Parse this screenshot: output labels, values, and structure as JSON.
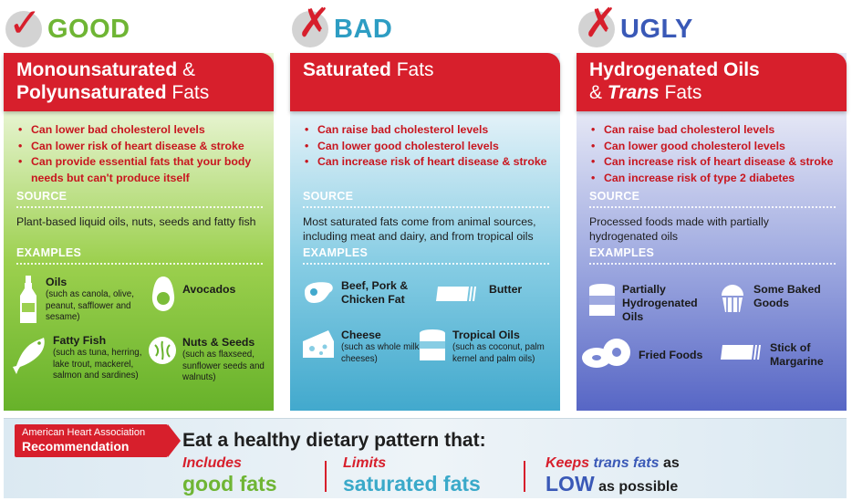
{
  "columns": {
    "good": {
      "verdict": "GOOD",
      "mark_icon": "checkmark-icon",
      "title_line1_bold": "Monounsaturated",
      "title_line1_rest": " &",
      "title_line2_bold": "Polyunsaturated",
      "title_line2_rest": " Fats",
      "bullets": [
        "Can lower bad cholesterol levels",
        "Can lower risk of heart disease & stroke",
        "Can provide essential fats that your body needs but can't produce itself"
      ],
      "source_label": "SOURCE",
      "source_text": "Plant-based liquid oils, nuts, seeds and fatty fish",
      "examples_label": "EXAMPLES",
      "examples": [
        {
          "title": "Oils",
          "detail": "(such as canola, olive, peanut, safflower and sesame)",
          "icon": "oil-bottle-icon"
        },
        {
          "title": "Avocados",
          "detail": "",
          "icon": "avocado-icon"
        },
        {
          "title": "Fatty Fish",
          "detail": "(such as tuna, herring, lake trout, mackerel, salmon and sardines)",
          "icon": "fish-icon"
        },
        {
          "title": "Nuts & Seeds",
          "detail": "(such as flaxseed, sunflower seeds and walnuts)",
          "icon": "walnut-icon"
        }
      ]
    },
    "bad": {
      "verdict": "BAD",
      "mark_icon": "x-mark-icon",
      "title_bold": "Saturated",
      "title_rest": " Fats",
      "bullets": [
        "Can raise bad cholesterol levels",
        "Can lower good cholesterol levels",
        "Can increase risk of heart disease & stroke"
      ],
      "source_label": "SOURCE",
      "source_text": "Most saturated fats come from animal sources, including meat and dairy, and from tropical oils",
      "examples_label": "EXAMPLES",
      "examples": [
        {
          "title": "Beef, Pork & Chicken Fat",
          "detail": "",
          "icon": "steak-icon"
        },
        {
          "title": "Butter",
          "detail": "",
          "icon": "butter-icon"
        },
        {
          "title": "Cheese",
          "detail": "(such as whole milk cheeses)",
          "icon": "cheese-icon"
        },
        {
          "title": "Tropical Oils",
          "detail": "(such as coconut, palm kernel and palm oils)",
          "icon": "oil-can-icon"
        }
      ]
    },
    "ugly": {
      "verdict": "UGLY",
      "mark_icon": "x-mark-icon",
      "title_line1": "Hydrogenated Oils",
      "title_line2_amp": "& ",
      "title_line2_italic": "Trans",
      "title_line2_rest": " Fats",
      "bullets": [
        "Can raise bad cholesterol levels",
        "Can lower good cholesterol levels",
        "Can increase risk of heart disease & stroke",
        "Can increase risk of type 2 diabetes"
      ],
      "source_label": "SOURCE",
      "source_text": "Processed foods made with partially hydrogenated oils",
      "examples_label": "EXAMPLES",
      "examples": [
        {
          "title": "Partially Hydrogenated Oils",
          "detail": "",
          "icon": "shortening-can-icon"
        },
        {
          "title": "Some Baked Goods",
          "detail": "",
          "icon": "cupcake-icon"
        },
        {
          "title": "Fried Foods",
          "detail": "",
          "icon": "donut-icon"
        },
        {
          "title": "Stick of Margarine",
          "detail": "",
          "icon": "margarine-icon"
        }
      ]
    }
  },
  "recommendation": {
    "badge_line1": "American Heart Association",
    "badge_line2": "Recommendation",
    "headline": "Eat a healthy dietary pattern that:",
    "item1_a": "Includes",
    "item1_b": "good fats",
    "item2_a": "Limits",
    "item2_b": "saturated fats",
    "item3_a1": "Keeps ",
    "item3_a2": "trans fats",
    "item3_a3": " as",
    "item3_b1": "LOW",
    "item3_b2": " as possible"
  },
  "colors": {
    "red": "#d71f2c",
    "good_green": "#6fb534",
    "bad_blue": "#2d9dc3",
    "ugly_indigo": "#3a59b7"
  }
}
